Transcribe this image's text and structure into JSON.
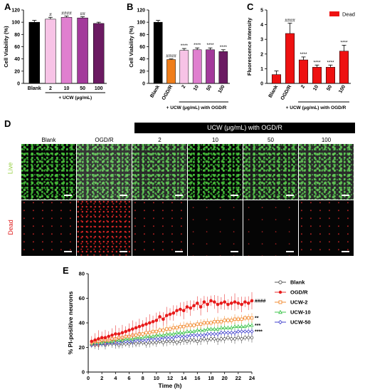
{
  "panels": {
    "A": "A",
    "B": "B",
    "C": "C",
    "D": "D",
    "E": "E"
  },
  "chart_data": [
    {
      "type": "bar",
      "panel": "A",
      "ylabel": "Cell Viability (%)",
      "xlabel": "+ UCW (μg/mL)",
      "ylim": [
        0,
        120
      ],
      "yticks": [
        0,
        20,
        40,
        60,
        80,
        100,
        120
      ],
      "categories": [
        "Blank",
        "2",
        "10",
        "50",
        "100"
      ],
      "values": [
        100,
        105,
        108,
        107,
        98
      ],
      "errors": [
        3,
        3,
        2,
        2,
        2
      ],
      "annotations": [
        "",
        "#",
        "####",
        "##",
        ""
      ],
      "colors": [
        "#000000",
        "#f7c3e6",
        "#e07fcf",
        "#a33a9b",
        "#6b1a62"
      ]
    },
    {
      "type": "bar",
      "panel": "B",
      "ylabel": "Cell Viability (%)",
      "xlabel": "+ UCW (μg/mL) with OGD/R",
      "ylim": [
        0,
        120
      ],
      "yticks": [
        0,
        20,
        40,
        60,
        80,
        100,
        120
      ],
      "categories": [
        "Blank",
        "OGD/R",
        "2",
        "10",
        "50",
        "100"
      ],
      "values": [
        100,
        39,
        54,
        55,
        55,
        52
      ],
      "errors": [
        3,
        1,
        3,
        3,
        3,
        3
      ],
      "annotations": [
        "",
        "####",
        "****",
        "****",
        "****",
        "****"
      ],
      "colors": [
        "#000000",
        "#f07e1a",
        "#f7c3e6",
        "#e07fcf",
        "#a33a9b",
        "#6b1a62"
      ]
    },
    {
      "type": "bar",
      "panel": "C",
      "ylabel": "Fluorescence Intensity",
      "xlabel": "+ UCW (μg/mL) with OGD/R",
      "ylim": [
        0,
        5
      ],
      "yticks": [
        0,
        1,
        2,
        3,
        4,
        5
      ],
      "legend": "Dead",
      "categories": [
        "Blank",
        "OGD/R",
        "2",
        "10",
        "50",
        "100"
      ],
      "values": [
        0.6,
        3.4,
        1.6,
        1.1,
        1.1,
        2.2
      ],
      "errors": [
        0.25,
        0.7,
        0.2,
        0.15,
        0.15,
        0.4
      ],
      "annotations": [
        "",
        "####",
        "****",
        "****",
        "****",
        "****"
      ],
      "colors": [
        "#ee1111"
      ]
    },
    {
      "type": "line",
      "panel": "E",
      "ylabel": "% PI-positive neurons",
      "xlabel": "Time (h)",
      "xlim": [
        0,
        24
      ],
      "ylim": [
        0,
        80
      ],
      "xticks": [
        0,
        2,
        4,
        6,
        8,
        10,
        12,
        14,
        16,
        18,
        20,
        22,
        24
      ],
      "yticks": [
        0,
        20,
        40,
        60,
        80
      ],
      "x": [
        0.5,
        1,
        1.5,
        2,
        2.5,
        3,
        3.5,
        4,
        4.5,
        5,
        5.5,
        6,
        6.5,
        7,
        7.5,
        8,
        8.5,
        9,
        9.5,
        10,
        10.5,
        11,
        11.5,
        12,
        12.5,
        13,
        13.5,
        14,
        14.5,
        15,
        15.5,
        16,
        16.5,
        17,
        17.5,
        18,
        18.5,
        19,
        19.5,
        20,
        20.5,
        21,
        21.5,
        22,
        22.5,
        23,
        23.5,
        24
      ],
      "series": [
        {
          "name": "Blank",
          "color": "#444444",
          "marker": "circle-open",
          "sig": "",
          "values": [
            22,
            22,
            22,
            23,
            22,
            23,
            23,
            23,
            22,
            23,
            23,
            23,
            24,
            23,
            24,
            24,
            23,
            24,
            24,
            24,
            25,
            24,
            25,
            25,
            25,
            24,
            25,
            26,
            25,
            26,
            26,
            25,
            26,
            27,
            26,
            27,
            27,
            26,
            27,
            27,
            28,
            27,
            27,
            28,
            27,
            28,
            28,
            28
          ],
          "err": 4
        },
        {
          "name": "OGD/R",
          "color": "#e81a1a",
          "marker": "circle-filled",
          "sig": "####",
          "values": [
            25,
            26,
            27,
            28,
            28,
            29,
            30,
            31,
            31,
            32,
            33,
            34,
            35,
            36,
            37,
            38,
            39,
            40,
            41,
            42,
            45,
            43,
            46,
            47,
            48,
            50,
            51,
            50,
            53,
            52,
            54,
            56,
            53,
            57,
            55,
            58,
            57,
            55,
            56,
            57,
            55,
            56,
            57,
            56,
            55,
            57,
            56,
            58
          ],
          "err": 7
        },
        {
          "name": "UCW-2",
          "color": "#f07e1a",
          "marker": "square-open",
          "sig": "**",
          "values": [
            24,
            25,
            25,
            26,
            26,
            26,
            27,
            27,
            28,
            28,
            29,
            29,
            30,
            30,
            31,
            31,
            32,
            32,
            33,
            33,
            34,
            34,
            35,
            35,
            36,
            36,
            37,
            37,
            38,
            38,
            38,
            39,
            39,
            40,
            40,
            40,
            41,
            41,
            41,
            42,
            42,
            42,
            43,
            43,
            43,
            44,
            44,
            44
          ],
          "err": 4
        },
        {
          "name": "UCW-10",
          "color": "#2bbf3a",
          "marker": "triangle-open",
          "sig": "***",
          "values": [
            23,
            24,
            24,
            24,
            25,
            25,
            25,
            26,
            26,
            26,
            27,
            27,
            27,
            28,
            28,
            28,
            29,
            29,
            29,
            30,
            30,
            30,
            31,
            31,
            31,
            32,
            32,
            32,
            33,
            33,
            33,
            34,
            34,
            34,
            35,
            35,
            35,
            35,
            36,
            36,
            36,
            36,
            37,
            37,
            37,
            37,
            38,
            38
          ],
          "err": 3
        },
        {
          "name": "UCW-50",
          "color": "#2c2cc8",
          "marker": "diamond-open",
          "sig": "****",
          "values": [
            22,
            23,
            23,
            23,
            23,
            24,
            24,
            24,
            24,
            25,
            25,
            25,
            25,
            26,
            26,
            26,
            26,
            27,
            27,
            27,
            27,
            28,
            28,
            28,
            28,
            29,
            29,
            29,
            29,
            30,
            30,
            30,
            30,
            30,
            31,
            31,
            31,
            31,
            32,
            32,
            32,
            32,
            32,
            33,
            33,
            33,
            33,
            33
          ],
          "err": 3
        }
      ]
    }
  ],
  "micrographs": {
    "header_bar": "UCW (μg/mL) with OGD/R",
    "columns": [
      "Blank",
      "OGD/R",
      "2",
      "10",
      "50",
      "100"
    ],
    "rows": [
      "Live",
      "Dead"
    ],
    "live_color": "#9bd24a",
    "dead_color": "#e02020"
  }
}
